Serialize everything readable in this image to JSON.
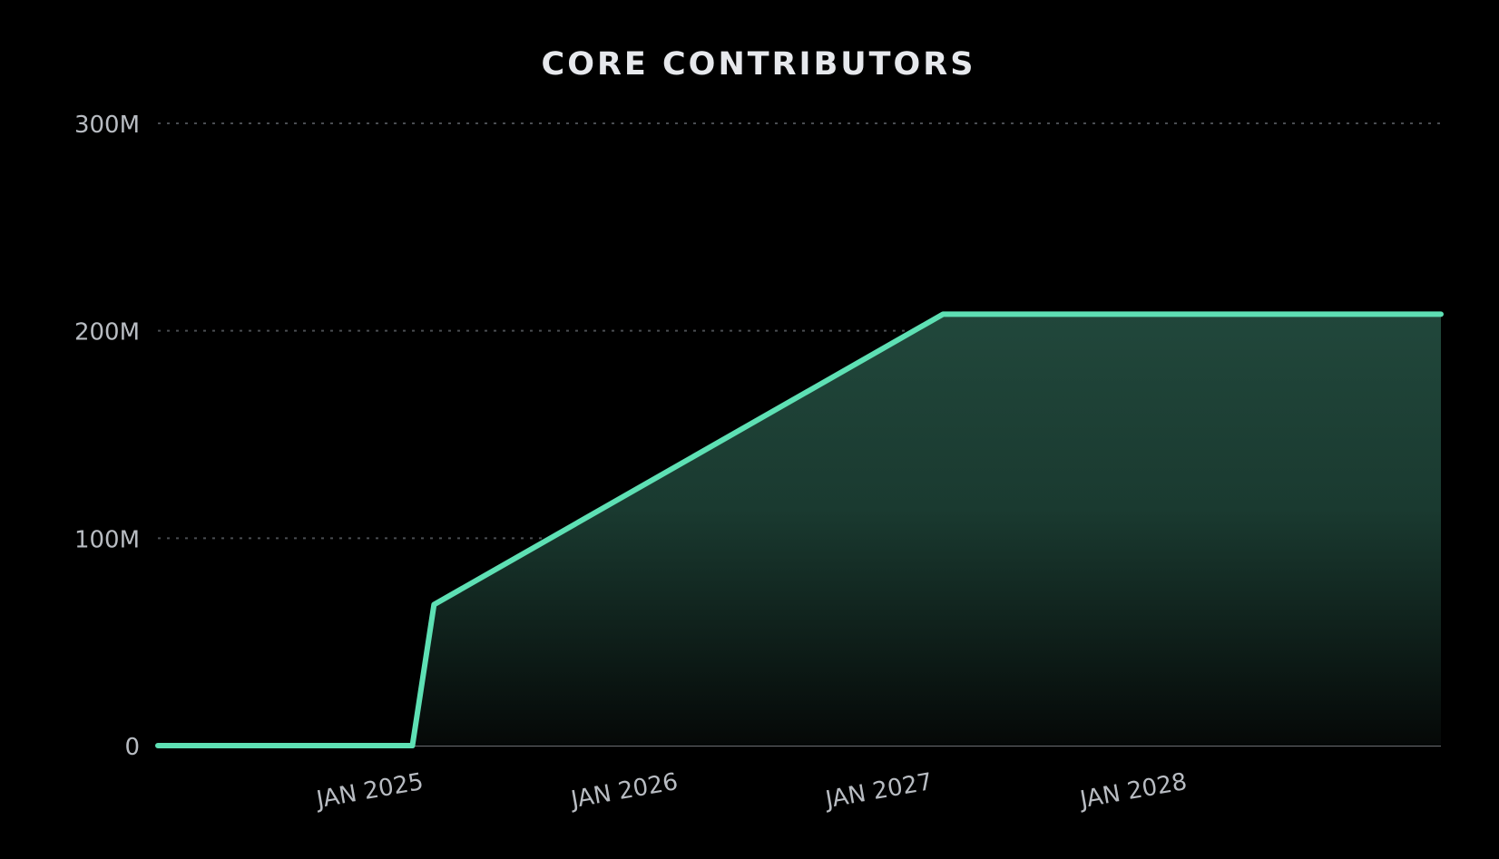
{
  "chart_data": {
    "type": "area",
    "title": "CORE CONTRIBUTORS",
    "xlabel": "",
    "ylabel": "",
    "x_tick_labels": [
      {
        "label": "JAN 2025",
        "value": "2025-01-01"
      },
      {
        "label": "JAN 2026",
        "value": "2026-01-01"
      },
      {
        "label": "JAN 2027",
        "value": "2027-01-01"
      },
      {
        "label": "JAN 2028",
        "value": "2028-01-01"
      }
    ],
    "y_ticks": [
      0,
      100000000,
      200000000,
      300000000
    ],
    "y_tick_labels": [
      "0",
      "100M",
      "200M",
      "300M"
    ],
    "xlim": [
      "2024-03-01",
      "2029-03-15"
    ],
    "ylim": [
      0,
      300000000
    ],
    "grid": true,
    "legend": "none",
    "series": [
      {
        "color": "#5ee0b4",
        "fill_color": "#21473b",
        "points": [
          {
            "x": "2024-03-01",
            "y": 0
          },
          {
            "x": "2025-03-01",
            "y": 0
          },
          {
            "x": "2025-04-01",
            "y": 68000000
          },
          {
            "x": "2027-04-01",
            "y": 208000000
          },
          {
            "x": "2029-03-15",
            "y": 208000000
          }
        ]
      }
    ]
  }
}
